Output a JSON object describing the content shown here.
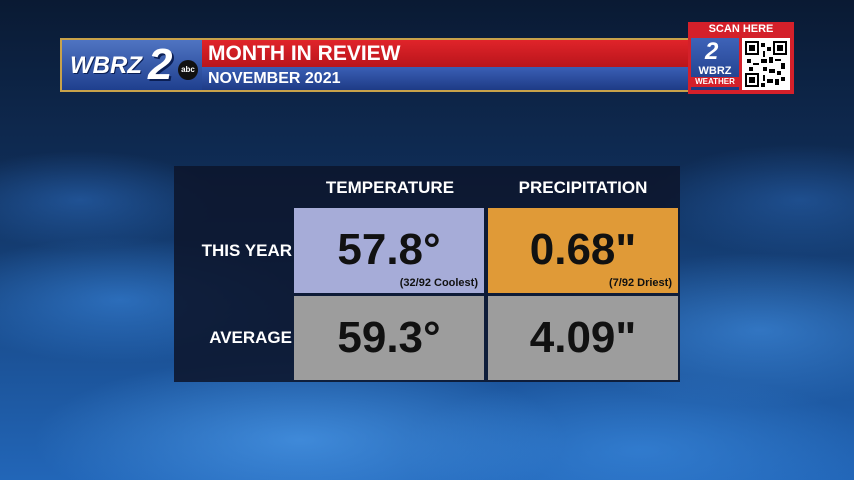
{
  "header": {
    "station_logo": "WBRZ",
    "station_number": "2",
    "network_badge": "abc",
    "title": "MONTH IN REVIEW",
    "subtitle": "NOVEMBER 2021"
  },
  "qr_widget": {
    "scan_label": "SCAN HERE",
    "logo_number": "2",
    "logo_text": "WBRZ",
    "logo_sub": "WEATHER"
  },
  "table": {
    "columns": [
      "TEMPERATURE",
      "PRECIPITATION"
    ],
    "rows": [
      {
        "label": "THIS YEAR",
        "temperature": "57.8°",
        "temperature_note": "(32/92 Coolest)",
        "precipitation": "0.68\"",
        "precipitation_note": "(7/92 Driest)"
      },
      {
        "label": "AVERAGE",
        "temperature": "59.3°",
        "precipitation": "4.09\""
      }
    ]
  },
  "colors": {
    "this_year_temperature": "#a6acd8",
    "this_year_precipitation": "#e09a37",
    "average_cells": "#9d9d9d",
    "banner_red": "#d4202a",
    "banner_blue": "#1e3b86"
  }
}
